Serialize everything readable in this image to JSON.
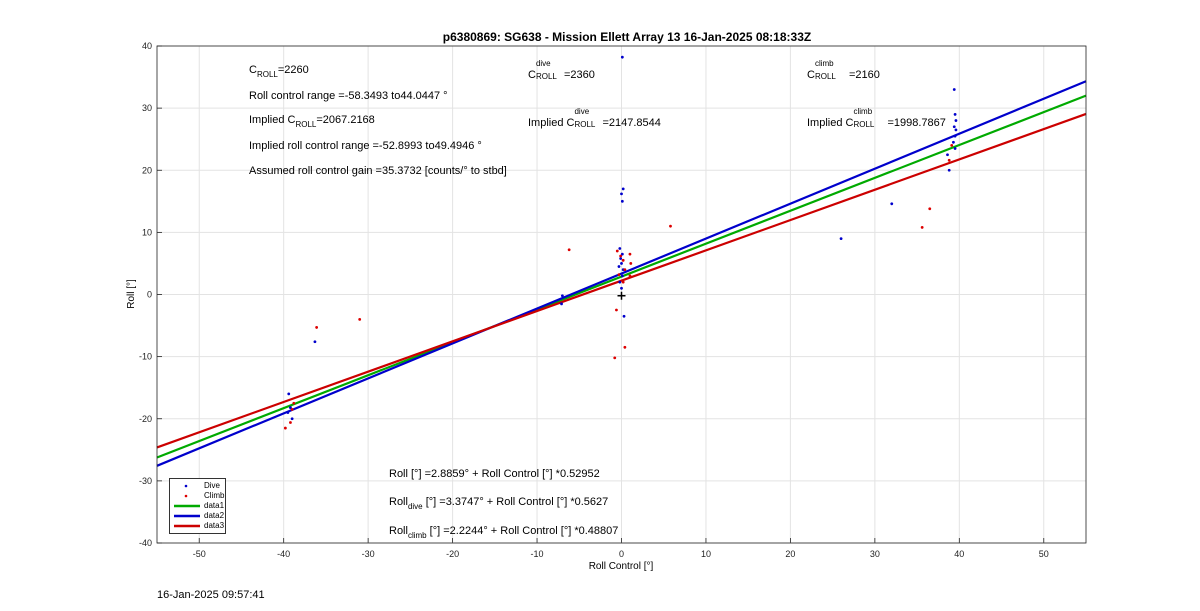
{
  "chart_data": {
    "type": "scatter",
    "title": "p6380869: SG638 - Mission Ellett Array 13 16-Jan-2025 08:18:33Z",
    "xlabel": "Roll Control [°]",
    "ylabel": "Roll [°]",
    "xlim": [
      -55,
      55
    ],
    "ylim": [
      -40,
      40
    ],
    "xticks": [
      -50,
      -40,
      -30,
      -20,
      -10,
      0,
      10,
      20,
      30,
      40,
      50
    ],
    "yticks": [
      -40,
      -30,
      -20,
      -10,
      0,
      10,
      20,
      30,
      40
    ],
    "grid": true,
    "legend_position": "bottom-left",
    "legend": [
      "Dive",
      "Climb",
      "data1",
      "data2",
      "data3"
    ],
    "colors": {
      "dive": "#0000cc",
      "climb": "#dd0000",
      "data1": "#00aa00",
      "data2": "#0000cc",
      "data3": "#cc0000"
    },
    "series": [
      {
        "name": "Dive",
        "kind": "points",
        "points": [
          [
            0.1,
            38.2
          ],
          [
            0.2,
            17.0
          ],
          [
            0.0,
            16.2
          ],
          [
            0.1,
            15.0
          ],
          [
            -0.2,
            7.4
          ],
          [
            0.1,
            6.5
          ],
          [
            -0.1,
            5.8
          ],
          [
            0.0,
            5.0
          ],
          [
            -0.3,
            4.5
          ],
          [
            0.2,
            4.0
          ],
          [
            0.1,
            3.0
          ],
          [
            -0.2,
            2.0
          ],
          [
            0.0,
            1.0
          ],
          [
            0.3,
            -3.5
          ],
          [
            -7.0,
            -0.2
          ],
          [
            -7.1,
            -1.5
          ],
          [
            -36.3,
            -7.6
          ],
          [
            -39.4,
            -16.0
          ],
          [
            -39.2,
            -18.2
          ],
          [
            -39.5,
            -19.0
          ],
          [
            -39.0,
            -20.0
          ],
          [
            26.0,
            9.0
          ],
          [
            32.0,
            14.6
          ],
          [
            39.4,
            33.0
          ],
          [
            39.5,
            29.0
          ],
          [
            39.6,
            28.0
          ],
          [
            39.4,
            27.0
          ],
          [
            39.6,
            26.5
          ],
          [
            39.5,
            25.5
          ],
          [
            39.3,
            24.5
          ],
          [
            39.5,
            23.5
          ],
          [
            38.6,
            22.5
          ],
          [
            38.8,
            20.0
          ]
        ]
      },
      {
        "name": "Climb",
        "kind": "points",
        "points": [
          [
            -6.2,
            7.2
          ],
          [
            5.8,
            11.0
          ],
          [
            -0.5,
            7.0
          ],
          [
            -0.1,
            6.2
          ],
          [
            0.2,
            5.5
          ],
          [
            1.0,
            6.5
          ],
          [
            1.1,
            5.0
          ],
          [
            0.4,
            4.0
          ],
          [
            -0.3,
            3.2
          ],
          [
            1.0,
            3.0
          ],
          [
            0.2,
            2.0
          ],
          [
            -0.6,
            -2.5
          ],
          [
            0.4,
            -8.5
          ],
          [
            -0.8,
            -10.2
          ],
          [
            -36.1,
            -5.3
          ],
          [
            -31.0,
            -4.0
          ],
          [
            -39.8,
            -21.5
          ],
          [
            -39.2,
            -20.6
          ],
          [
            -39.0,
            -18.5
          ],
          [
            -38.8,
            -17.5
          ],
          [
            36.5,
            13.8
          ],
          [
            35.6,
            10.8
          ],
          [
            38.8,
            21.6
          ],
          [
            39.1,
            24.0
          ]
        ]
      },
      {
        "name": "data1",
        "kind": "line",
        "slope": 0.52952,
        "intercept": 2.8859
      },
      {
        "name": "data2",
        "kind": "line",
        "slope": 0.5627,
        "intercept": 3.3747
      },
      {
        "name": "data3",
        "kind": "line",
        "slope": 0.48807,
        "intercept": 2.2244
      },
      {
        "name": "",
        "kind": "marker",
        "points": [
          [
            0.0,
            -0.2
          ]
        ],
        "color": "#000000"
      }
    ]
  },
  "annotations": {
    "c_roll_base": "C",
    "c_roll_sub": "ROLL",
    "c_roll_value": "=2260",
    "roll_range": "Roll control range =-58.3493 to44.0447 °",
    "implied_prefix": "Implied C",
    "implied_sub": "ROLL",
    "implied_value": "=2067.2168",
    "implied_range": "Implied roll control range =-52.8993 to49.4946 °",
    "assumed_gain": "Assumed roll control gain =35.3732 [counts/° to stbd]",
    "dive_base": "C",
    "dive_sup": "dive",
    "dive_sub": "ROLL",
    "dive_value": "=2360",
    "implied_dive_prefix": "Implied C",
    "implied_dive_value": "=2147.8544",
    "climb_base": "C",
    "climb_sup": "climb",
    "climb_sub": "ROLL",
    "climb_value": "=2160",
    "implied_climb_prefix": "Implied C",
    "implied_climb_value": "=1998.7867",
    "eq1": "Roll [°] =2.8859° + Roll Control [°] *0.52952",
    "eq2_base": "Roll",
    "eq2_sub": "dive",
    "eq2_rest": " [°] =3.3747° + Roll Control [°] *0.5627",
    "eq3_base": "Roll",
    "eq3_sub": "climb",
    "eq3_rest": " [°] =2.2244° + Roll Control [°] *0.48807"
  },
  "footer": {
    "timestamp": "16-Jan-2025 09:57:41"
  }
}
